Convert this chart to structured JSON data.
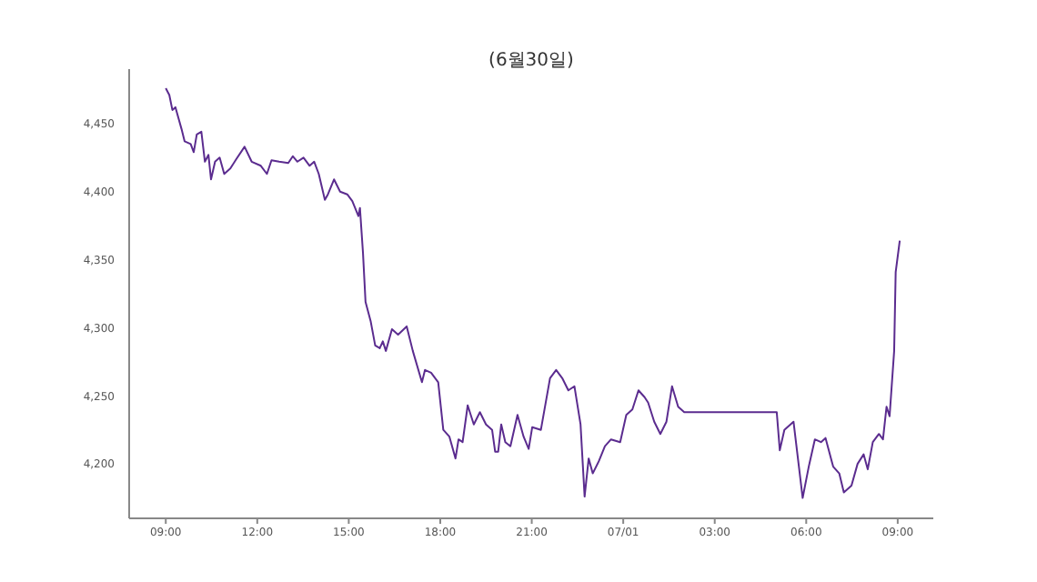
{
  "chart_data": {
    "type": "line",
    "title": "(6월30일)",
    "x": [
      "--06-30T09:00",
      "--06-30T09:07",
      "--06-30T09:13",
      "--06-30T09:19",
      "--06-30T09:31",
      "--06-30T09:37",
      "--06-30T09:49",
      "--06-30T09:55",
      "--06-30T10:01",
      "--06-30T10:10",
      "--06-30T10:17",
      "--06-30T10:24",
      "--06-30T10:29",
      "--06-30T10:37",
      "--06-30T10:46",
      "--06-30T10:55",
      "--06-30T11:07",
      "--06-30T11:19",
      "--06-30T11:35",
      "--06-30T11:49",
      "--06-30T12:07",
      "--06-30T12:19",
      "--06-30T12:28",
      "--06-30T12:43",
      "--06-30T13:01",
      "--06-30T13:10",
      "--06-30T13:19",
      "--06-30T13:31",
      "--06-30T13:43",
      "--06-30T13:52",
      "--06-30T14:01",
      "--06-30T14:13",
      "--06-30T14:19",
      "--06-30T14:31",
      "--06-30T14:43",
      "--06-30T14:57",
      "--06-30T15:07",
      "--06-30T15:19",
      "--06-30T15:22",
      "--06-30T15:28",
      "--06-30T15:33",
      "--06-30T15:43",
      "--06-30T15:52",
      "--06-30T16:01",
      "--06-30T16:07",
      "--06-30T16:13",
      "--06-30T16:25",
      "--06-30T16:37",
      "--06-30T16:54",
      "--06-30T17:06",
      "--06-30T17:24",
      "--06-30T17:30",
      "--06-30T17:42",
      "--06-30T17:56",
      "--06-30T18:06",
      "--06-30T18:18",
      "--06-30T18:30",
      "--06-30T18:36",
      "--06-30T18:44",
      "--06-30T18:54",
      "--06-30T19:06",
      "--06-30T19:18",
      "--06-30T19:30",
      "--06-30T19:42",
      "--06-30T19:48",
      "--06-30T19:54",
      "--06-30T20:00",
      "--06-30T20:08",
      "--06-30T20:18",
      "--06-30T20:32",
      "--06-30T20:44",
      "--06-30T20:54",
      "--06-30T21:01",
      "--06-30T21:18",
      "--06-30T21:36",
      "--06-30T21:48",
      "--06-30T22:00",
      "--06-30T22:12",
      "--06-30T22:24",
      "--06-30T22:36",
      "--06-30T22:44",
      "--06-30T22:52",
      "--06-30T23:00",
      "--06-30T23:12",
      "--06-30T23:24",
      "--06-30T23:36",
      "--06-30T23:54",
      "--07-01T00:06",
      "--07-01T00:18",
      "--07-01T00:30",
      "--07-01T00:42",
      "--07-01T00:49",
      "--07-01T01:01",
      "--07-01T01:13",
      "--07-01T01:25",
      "--07-01T01:36",
      "--07-01T01:48",
      "--07-01T02:00",
      "--07-01T05:02",
      "--07-01T05:08",
      "--07-01T05:17",
      "--07-01T05:35",
      "--07-01T05:53",
      "--07-01T06:05",
      "--07-01T06:17",
      "--07-01T06:29",
      "--07-01T06:38",
      "--07-01T06:53",
      "--07-01T07:05",
      "--07-01T07:14",
      "--07-01T07:29",
      "--07-01T07:41",
      "--07-01T07:53",
      "--07-01T08:01",
      "--07-01T08:11",
      "--07-01T08:23",
      "--07-01T08:31",
      "--07-01T08:38",
      "--07-01T08:44",
      "--07-01T08:53",
      "--07-01T08:56",
      "--07-01T09:04"
    ],
    "series": [
      {
        "color": "#5b2c8f",
        "values": [
          4476,
          4471,
          4460,
          4462,
          4446,
          4437,
          4435,
          4429,
          4442,
          4444,
          4422,
          4427,
          4409,
          4422,
          4425,
          4413,
          4417,
          4424,
          4433,
          4422,
          4419,
          4413,
          4423,
          4422,
          4421,
          4426,
          4422,
          4425,
          4419,
          4422,
          4413,
          4394,
          4398,
          4409,
          4400,
          4398,
          4393,
          4382,
          4388,
          4355,
          4319,
          4305,
          4287,
          4285,
          4290,
          4283,
          4299,
          4295,
          4301,
          4283,
          4260,
          4269,
          4267,
          4260,
          4225,
          4220,
          4204,
          4218,
          4216,
          4243,
          4229,
          4238,
          4229,
          4225,
          4209,
          4209,
          4229,
          4216,
          4213,
          4236,
          4220,
          4211,
          4227,
          4225,
          4263,
          4269,
          4263,
          4254,
          4257,
          4229,
          4176,
          4204,
          4193,
          4202,
          4213,
          4218,
          4216,
          4236,
          4240,
          4254,
          4249,
          4245,
          4231,
          4222,
          4231,
          4257,
          4242,
          4238,
          4238,
          4210,
          4225,
          4231,
          4175,
          4198,
          4218,
          4216,
          4219,
          4198,
          4193,
          4179,
          4184,
          4200,
          4207,
          4196,
          4216,
          4222,
          4218,
          4242,
          4235,
          4283,
          4341,
          4364
        ]
      }
    ],
    "xlim": [
      "--06-30T07:48",
      "--07-01T10:10"
    ],
    "xticks": [
      {
        "value": "--06-30T09:00",
        "label": "09:00"
      },
      {
        "value": "--06-30T12:00",
        "label": "12:00"
      },
      {
        "value": "--06-30T15:00",
        "label": "15:00"
      },
      {
        "value": "--06-30T18:00",
        "label": "18:00"
      },
      {
        "value": "--06-30T21:00",
        "label": "21:00"
      },
      {
        "value": "--07-01T00:00",
        "label": "07/01"
      },
      {
        "value": "--07-01T03:00",
        "label": "03:00"
      },
      {
        "value": "--07-01T06:00",
        "label": "06:00"
      },
      {
        "value": "--07-01T09:00",
        "label": "09:00"
      }
    ],
    "ylim": [
      4160,
      4490
    ],
    "yticks": [
      {
        "value": 4200,
        "label": "4,200"
      },
      {
        "value": 4250,
        "label": "4,250"
      },
      {
        "value": 4300,
        "label": "4,300"
      },
      {
        "value": 4350,
        "label": "4,350"
      },
      {
        "value": 4400,
        "label": "4,400"
      },
      {
        "value": 4450,
        "label": "4,450"
      }
    ],
    "grid": false,
    "legend": false,
    "marker": "none",
    "line_style": "solid"
  }
}
